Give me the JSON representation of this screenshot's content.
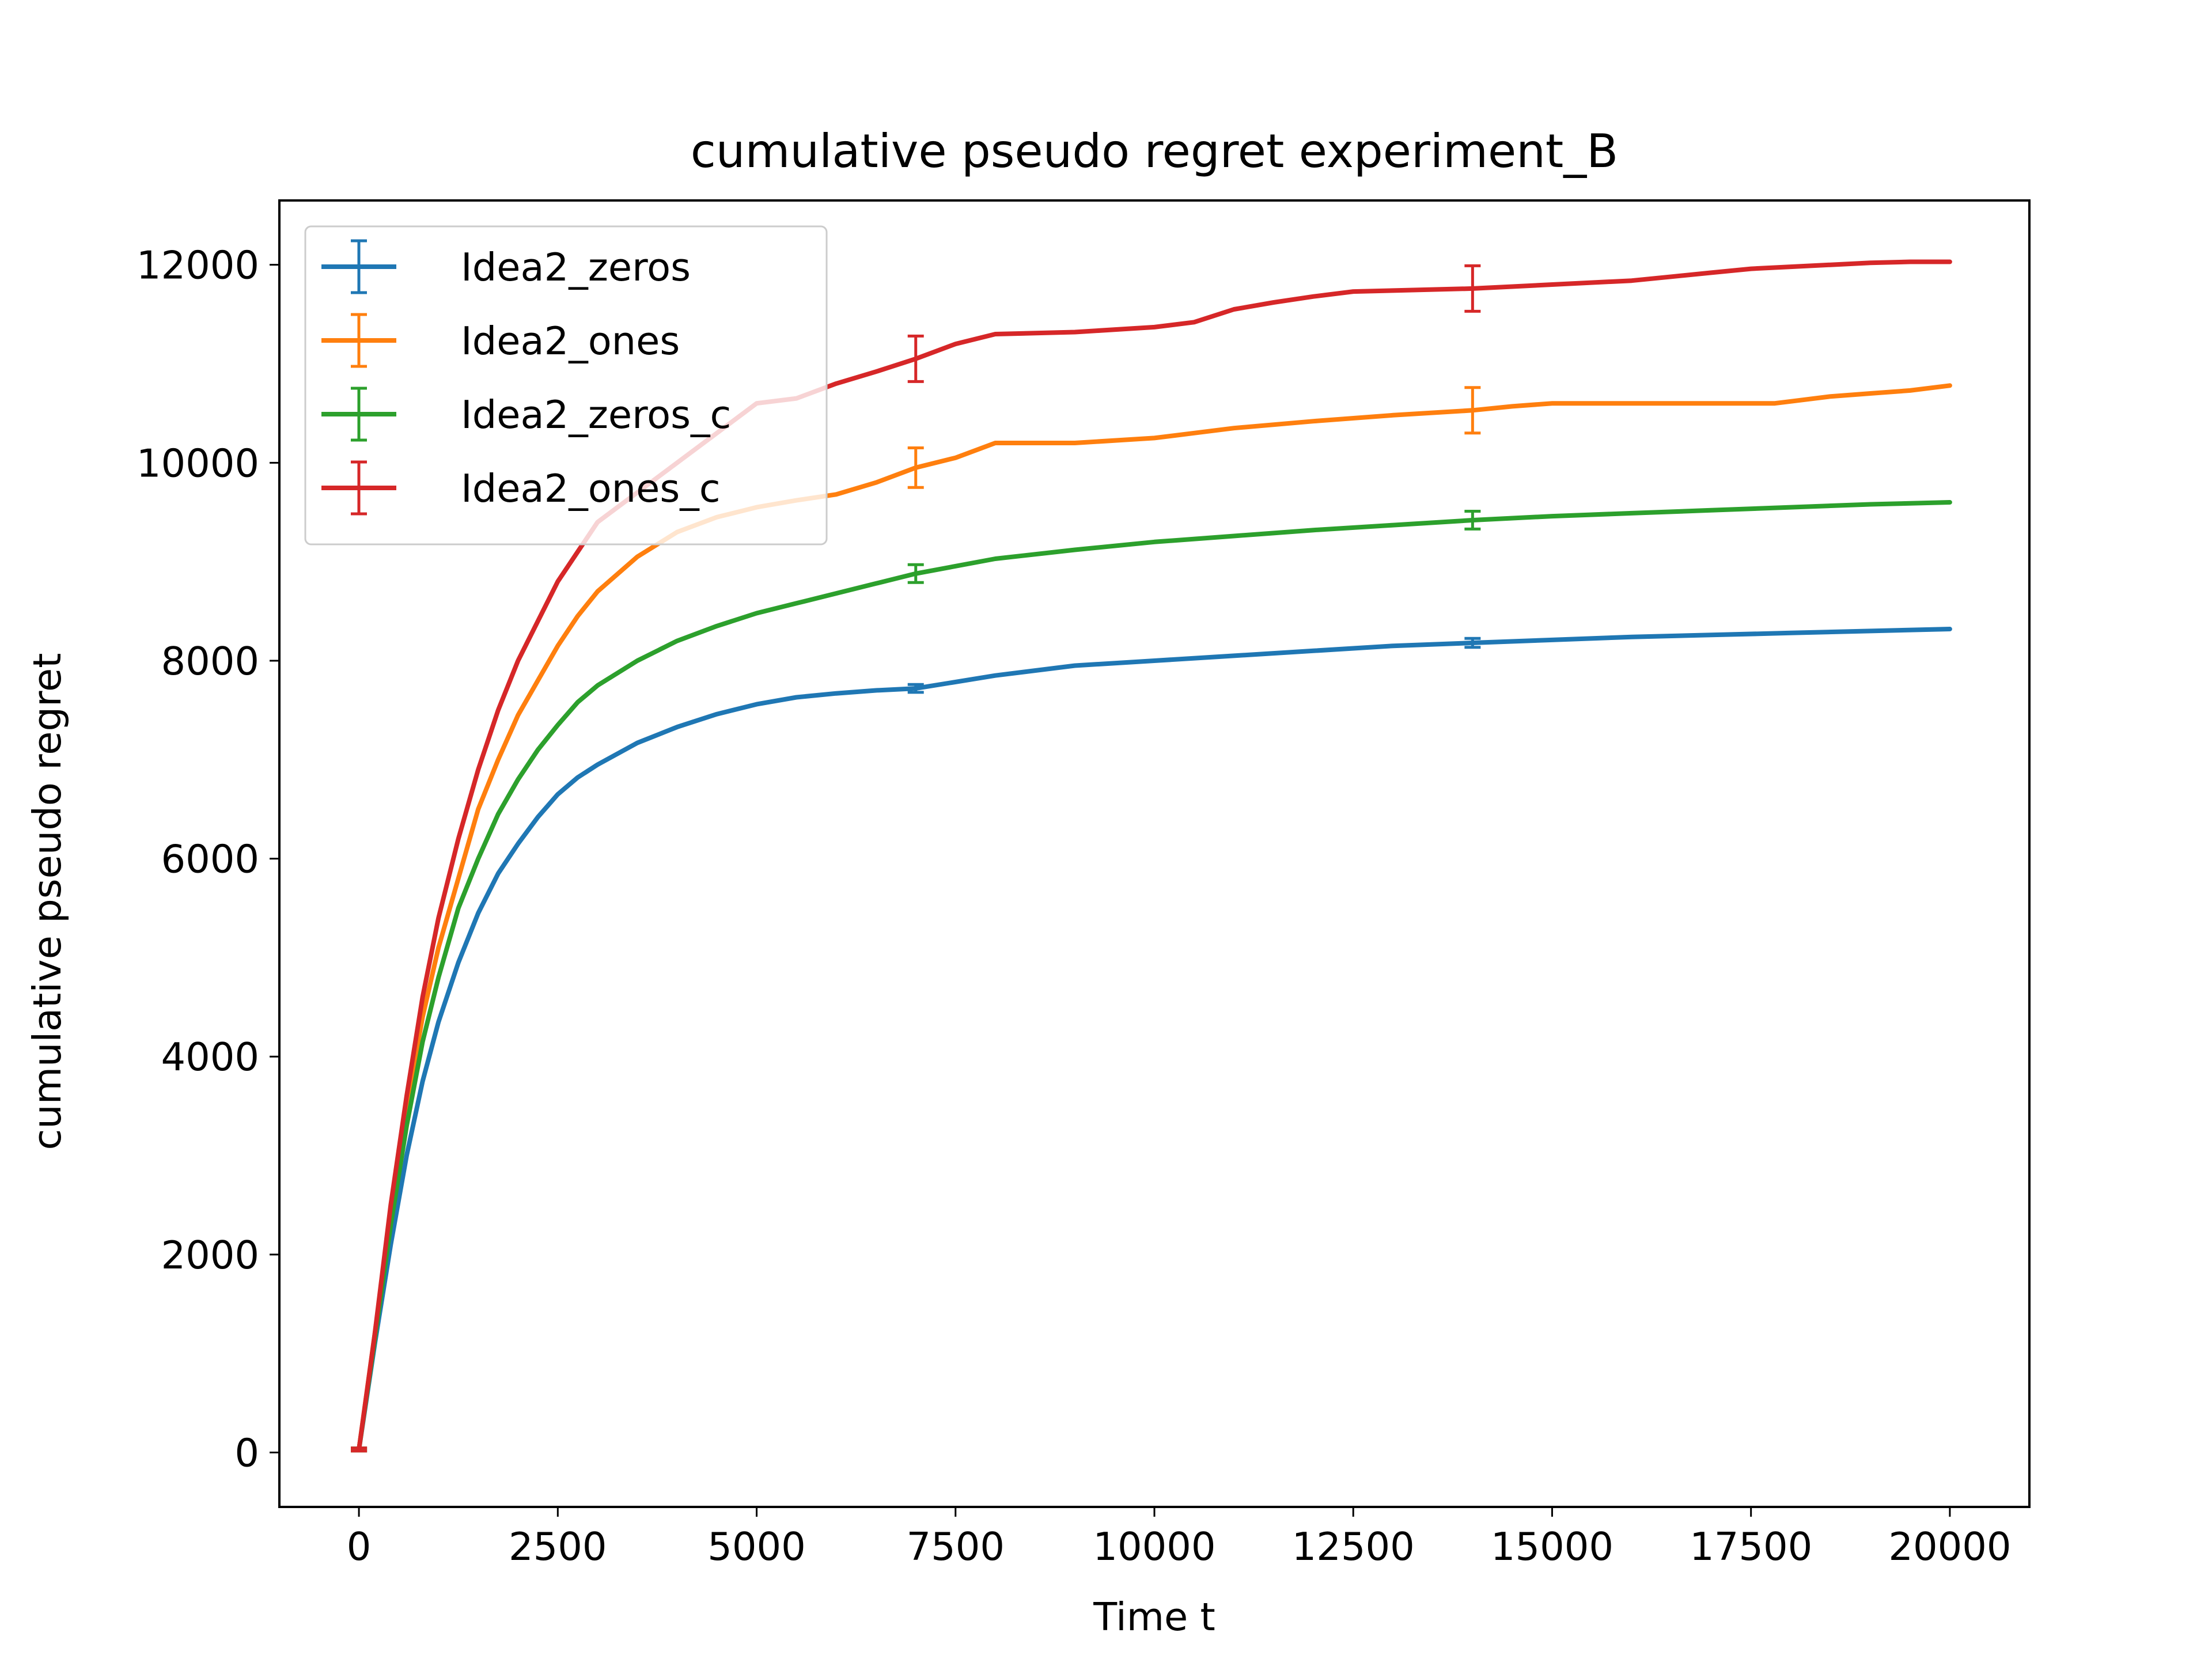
{
  "chart_data": {
    "type": "line",
    "title": "cumulative pseudo regret experiment_B",
    "xlabel": "Time t",
    "ylabel": "cumulative pseudo regret",
    "xlim": [
      -1000,
      21000
    ],
    "ylim": [
      -550,
      12650
    ],
    "xticks": [
      0,
      2500,
      5000,
      7500,
      10000,
      12500,
      15000,
      17500,
      20000
    ],
    "yticks": [
      0,
      2000,
      4000,
      6000,
      8000,
      10000,
      12000
    ],
    "grid": false,
    "legend_position": "top-left",
    "series": [
      {
        "name": "Idea2_zeros",
        "color": "#1f77b4",
        "x": [
          0,
          200,
          400,
          600,
          800,
          1000,
          1250,
          1500,
          1750,
          2000,
          2250,
          2500,
          2750,
          3000,
          3500,
          4000,
          4500,
          5000,
          5500,
          6000,
          6500,
          7000,
          8000,
          9000,
          10000,
          11000,
          12000,
          13000,
          14000,
          15000,
          16000,
          17000,
          18000,
          19000,
          20000
        ],
        "y": [
          30,
          1100,
          2100,
          3000,
          3750,
          4350,
          4950,
          5450,
          5850,
          6150,
          6420,
          6650,
          6820,
          6950,
          7170,
          7330,
          7460,
          7560,
          7630,
          7670,
          7700,
          7720,
          7850,
          7950,
          8000,
          8050,
          8100,
          8150,
          8180,
          8210,
          8240,
          8260,
          8280,
          8300,
          8320
        ],
        "errorbars": [
          {
            "x": 0,
            "y": 30,
            "err": 15
          },
          {
            "x": 7000,
            "y": 7720,
            "err": 40
          },
          {
            "x": 14000,
            "y": 8180,
            "err": 45
          }
        ]
      },
      {
        "name": "Idea2_ones",
        "color": "#ff7f0e",
        "x": [
          0,
          200,
          400,
          600,
          800,
          1000,
          1250,
          1500,
          1750,
          2000,
          2250,
          2500,
          2750,
          3000,
          3500,
          4000,
          4500,
          5000,
          5500,
          6000,
          6500,
          7000,
          7500,
          8000,
          9000,
          10000,
          10500,
          11000,
          12000,
          13000,
          14000,
          14500,
          15000,
          16000,
          17000,
          17800,
          18000,
          18500,
          19000,
          19500,
          20000
        ],
        "y": [
          30,
          1200,
          2400,
          3500,
          4400,
          5100,
          5800,
          6500,
          7000,
          7450,
          7800,
          8150,
          8450,
          8700,
          9050,
          9300,
          9450,
          9550,
          9620,
          9680,
          9800,
          9950,
          10050,
          10200,
          10200,
          10250,
          10300,
          10350,
          10420,
          10480,
          10530,
          10570,
          10600,
          10600,
          10600,
          10600,
          10620,
          10670,
          10700,
          10730,
          10780
        ],
        "errorbars": [
          {
            "x": 0,
            "y": 30,
            "err": 15
          },
          {
            "x": 7000,
            "y": 9950,
            "err": 200
          },
          {
            "x": 14000,
            "y": 10530,
            "err": 230
          }
        ]
      },
      {
        "name": "Idea2_zeros_c",
        "color": "#2ca02c",
        "x": [
          0,
          200,
          400,
          600,
          800,
          1000,
          1250,
          1500,
          1750,
          2000,
          2250,
          2500,
          2750,
          3000,
          3500,
          4000,
          4500,
          5000,
          5500,
          6000,
          6500,
          7000,
          8000,
          9000,
          10000,
          11000,
          12000,
          13000,
          14000,
          15000,
          16000,
          17000,
          18000,
          19000,
          20000
        ],
        "y": [
          30,
          1150,
          2300,
          3300,
          4150,
          4800,
          5500,
          6000,
          6450,
          6800,
          7100,
          7350,
          7580,
          7750,
          8000,
          8200,
          8350,
          8480,
          8580,
          8680,
          8780,
          8880,
          9030,
          9120,
          9200,
          9260,
          9320,
          9370,
          9420,
          9460,
          9490,
          9520,
          9550,
          9580,
          9600
        ],
        "errorbars": [
          {
            "x": 0,
            "y": 30,
            "err": 15
          },
          {
            "x": 7000,
            "y": 8880,
            "err": 90
          },
          {
            "x": 14000,
            "y": 9420,
            "err": 90
          }
        ]
      },
      {
        "name": "Idea2_ones_c",
        "color": "#d62728",
        "x": [
          0,
          200,
          400,
          600,
          800,
          1000,
          1250,
          1500,
          1750,
          2000,
          2250,
          2500,
          2750,
          3000,
          3500,
          4000,
          4500,
          5000,
          5500,
          6000,
          6500,
          7000,
          7500,
          8000,
          9000,
          10000,
          10500,
          11000,
          11500,
          12000,
          12500,
          13000,
          14000,
          14500,
          15000,
          16000,
          16500,
          17000,
          17500,
          18000,
          18500,
          19000,
          19500,
          20000
        ],
        "y": [
          30,
          1200,
          2500,
          3600,
          4600,
          5400,
          6200,
          6900,
          7500,
          8000,
          8400,
          8800,
          9100,
          9400,
          9700,
          10000,
          10300,
          10600,
          10650,
          10800,
          10920,
          11050,
          11200,
          11300,
          11320,
          11370,
          11420,
          11550,
          11620,
          11680,
          11730,
          11740,
          11760,
          11780,
          11800,
          11840,
          11880,
          11920,
          11960,
          11980,
          12000,
          12020,
          12030,
          12030
        ],
        "errorbars": [
          {
            "x": 0,
            "y": 30,
            "err": 15
          },
          {
            "x": 7000,
            "y": 11050,
            "err": 230
          },
          {
            "x": 14000,
            "y": 11760,
            "err": 230
          }
        ]
      }
    ]
  }
}
